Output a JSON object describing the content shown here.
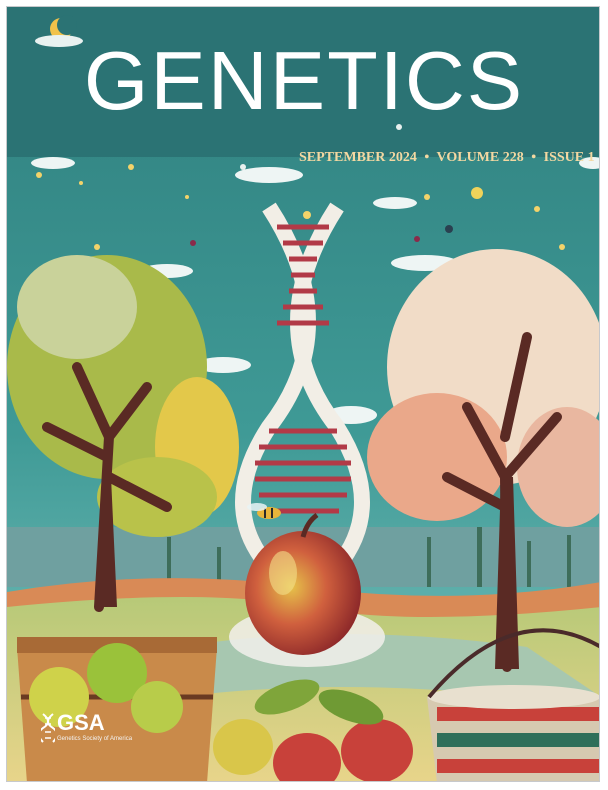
{
  "journal": {
    "title": "GENETICS",
    "issue_month": "SEPTEMBER 2024",
    "volume": "VOLUME 228",
    "issue": "ISSUE 1",
    "separator": "•"
  },
  "publisher": {
    "abbr": "GSA",
    "name": "Genetics Society of America"
  },
  "colors": {
    "sky_teal": "#2f7f7e",
    "masthead": "#ffffff",
    "issue_text": "#f3d8a2",
    "apple_red": "#c8413a",
    "tree_green": "#a8b84a",
    "tree_pink": "#f1c4a6"
  },
  "cover_art": {
    "scene": "illustrated orchard",
    "elements": [
      "moon-icon",
      "dna-helix",
      "apple",
      "bee",
      "apple-tree-green",
      "apple-tree-pink",
      "wooden-bucket",
      "striped-bucket",
      "clouds"
    ]
  }
}
